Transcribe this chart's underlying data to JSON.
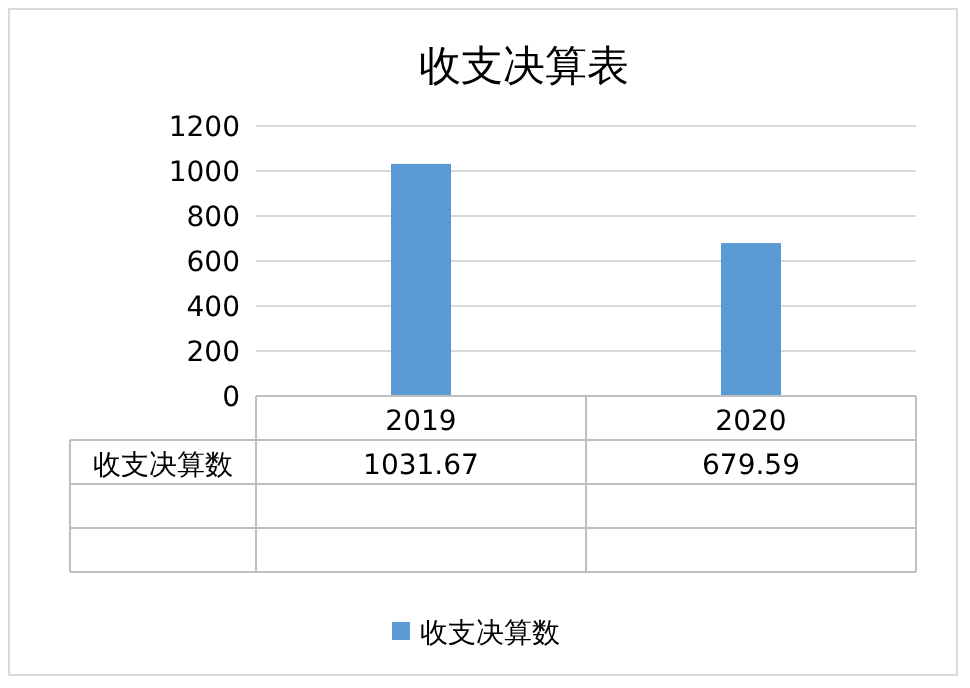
{
  "chart_data": {
    "type": "bar",
    "title": "收支决算表",
    "categories": [
      "2019",
      "2020"
    ],
    "series": [
      {
        "name": "收支决算数",
        "color": "#5b9bd5",
        "values": [
          1031.67,
          679.59
        ]
      }
    ],
    "ylim": [
      0,
      1200
    ],
    "yticks": [
      0,
      200,
      400,
      600,
      800,
      1000,
      1200
    ],
    "grid": "y",
    "legend": "bottom",
    "data_labels": true
  }
}
